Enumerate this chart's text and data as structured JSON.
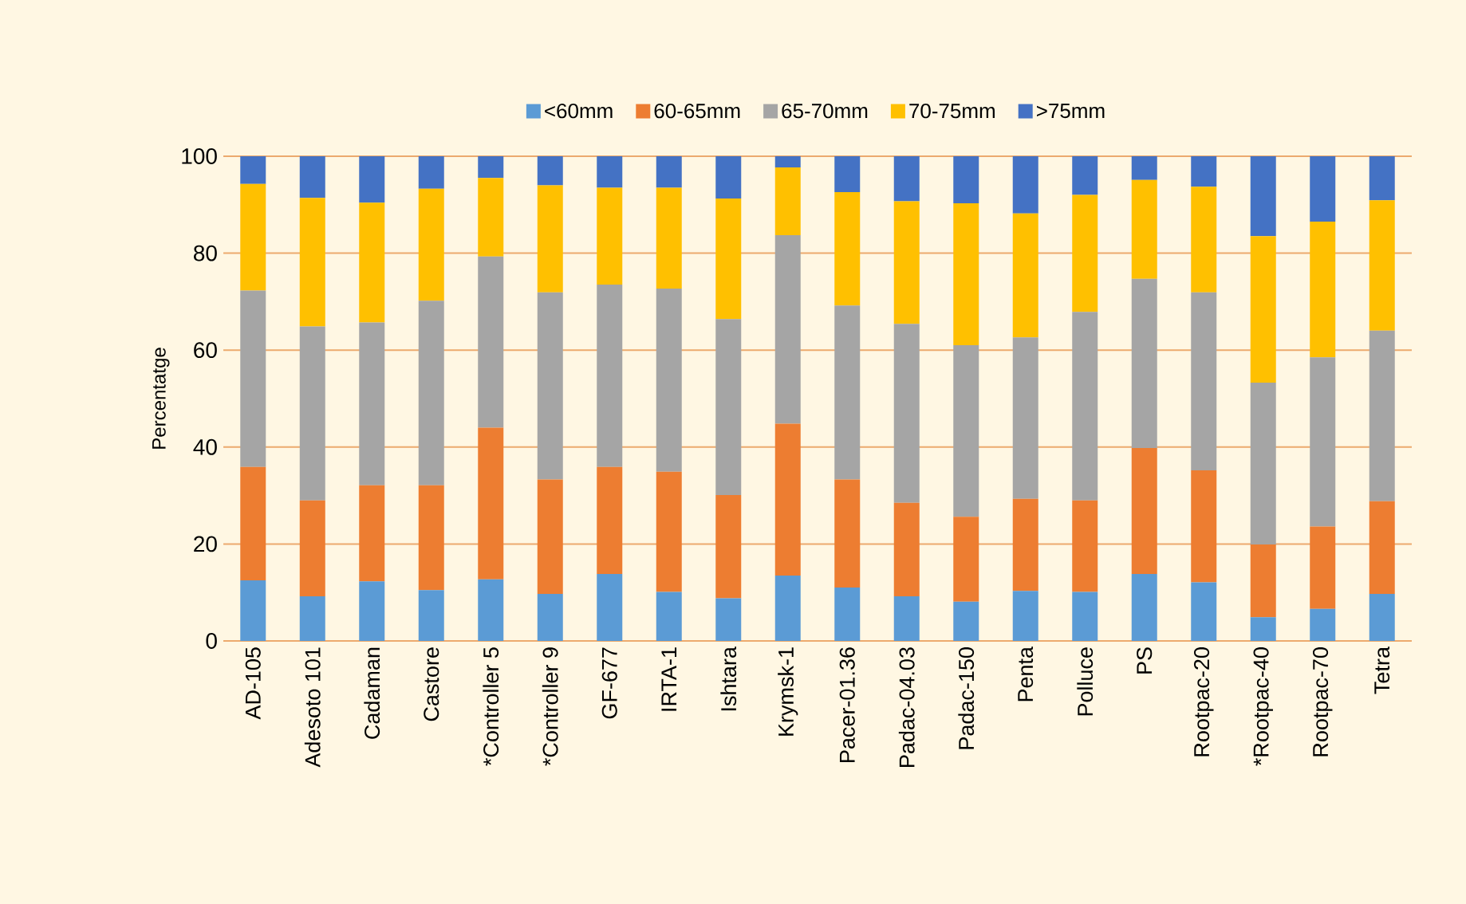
{
  "chart_data": {
    "type": "bar",
    "stacked": true,
    "ylabel": "Percentatge",
    "categories": [
      "AD-105",
      "Adesoto 101",
      "Cadaman",
      "Castore",
      "*Controller 5",
      "*Controller 9",
      "GF-677",
      "IRTA-1",
      "Ishtara",
      "Krymsk-1",
      "Pacer-01.36",
      "Padac-04.03",
      "Padac-150",
      "Penta",
      "Polluce",
      "PS",
      "Rootpac-20",
      "*Rootpac-40",
      "Rootpac-70",
      "Tetra"
    ],
    "series": [
      {
        "name": "<60mm",
        "color": "#5b9bd5",
        "values": [
          12.5,
          9.2,
          12.3,
          10.5,
          12.7,
          9.7,
          13.8,
          10.1,
          8.8,
          13.5,
          11.0,
          9.2,
          8.1,
          10.3,
          10.1,
          13.8,
          12.1,
          4.9,
          6.6,
          9.7
        ]
      },
      {
        "name": "60-65mm",
        "color": "#ed7d31",
        "values": [
          23.4,
          19.8,
          19.8,
          21.6,
          31.3,
          23.6,
          22.1,
          24.8,
          21.3,
          31.3,
          22.3,
          19.3,
          17.5,
          19.0,
          18.9,
          26.0,
          23.1,
          15.0,
          17.0,
          19.1
        ]
      },
      {
        "name": "65-70mm",
        "color": "#a5a5a5",
        "values": [
          36.4,
          35.9,
          33.6,
          38.1,
          35.3,
          38.6,
          37.6,
          37.8,
          36.3,
          38.9,
          35.9,
          36.9,
          35.4,
          33.3,
          38.9,
          34.9,
          36.7,
          33.4,
          34.9,
          35.2
        ]
      },
      {
        "name": "70-75mm",
        "color": "#ffc000",
        "values": [
          22.0,
          26.5,
          24.7,
          23.1,
          16.2,
          22.1,
          20.0,
          20.8,
          24.9,
          14.0,
          23.4,
          25.3,
          29.3,
          25.6,
          24.1,
          20.4,
          21.8,
          30.2,
          28.0,
          26.9
        ]
      },
      {
        "name": ">75mm",
        "color": "#4472c4",
        "values": [
          5.7,
          8.6,
          9.6,
          6.7,
          4.5,
          6.0,
          6.5,
          6.5,
          8.7,
          2.3,
          7.4,
          9.3,
          9.7,
          11.8,
          8.0,
          4.9,
          6.3,
          16.5,
          13.5,
          9.1
        ]
      }
    ],
    "ylim": [
      0,
      100
    ],
    "yticks": [
      0,
      20,
      40,
      60,
      80,
      100
    ],
    "grid": "y",
    "legend": "top"
  }
}
